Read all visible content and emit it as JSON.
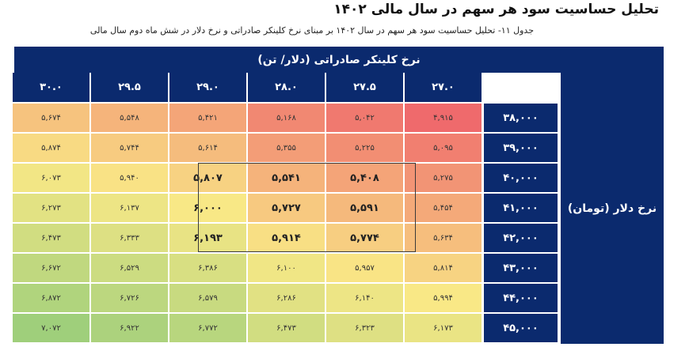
{
  "title": "تحلیل حساسیت سود هر سهم در سال مالی ۱۴۰۲",
  "caption": "جدول ۱۱- تحلیل حساسیت سود هر سهم در سال ۱۴۰۲ بر مبنای نرخ کلینکر صادراتی و نرخ دلار در شش ماه دوم سال مالی",
  "table": {
    "column_group_header": "نرخ کلینکر صادراتی (دلار/ تن)",
    "row_group_header": "نرخ دلار (تومان)",
    "columns": [
      "۲۷.۰",
      "۲۷.۵",
      "۲۸.۰",
      "۲۹.۰",
      "۲۹.۵",
      "۳۰.۰"
    ],
    "rows": [
      "۳۸,۰۰۰",
      "۳۹,۰۰۰",
      "۴۰,۰۰۰",
      "۴۱,۰۰۰",
      "۴۲,۰۰۰",
      "۴۳,۰۰۰",
      "۴۴,۰۰۰",
      "۴۵,۰۰۰"
    ],
    "values": [
      [
        "۴,۹۱۵",
        "۵,۰۴۲",
        "۵,۱۶۸",
        "۵,۴۲۱",
        "۵,۵۴۸",
        "۵,۶۷۴"
      ],
      [
        "۵,۰۹۵",
        "۵,۲۲۵",
        "۵,۳۵۵",
        "۵,۶۱۴",
        "۵,۷۴۴",
        "۵,۸۷۴"
      ],
      [
        "۵,۲۷۵",
        "۵,۴۰۸",
        "۵,۵۴۱",
        "۵,۸۰۷",
        "۵,۹۴۰",
        "۶,۰۷۳"
      ],
      [
        "۵,۴۵۴",
        "۵,۵۹۱",
        "۵,۷۲۷",
        "۶,۰۰۰",
        "۶,۱۳۷",
        "۶,۲۷۳"
      ],
      [
        "۵,۶۳۴",
        "۵,۷۷۴",
        "۵,۹۱۴",
        "۶,۱۹۳",
        "۶,۳۳۳",
        "۶,۴۷۳"
      ],
      [
        "۵,۸۱۴",
        "۵,۹۵۷",
        "۶,۱۰۰",
        "۶,۳۸۶",
        "۶,۵۲۹",
        "۶,۶۷۲"
      ],
      [
        "۵,۹۹۴",
        "۶,۱۴۰",
        "۶,۲۸۶",
        "۶,۵۷۹",
        "۶,۷۲۶",
        "۶,۸۷۲"
      ],
      [
        "۶,۱۷۳",
        "۶,۳۲۳",
        "۶,۴۷۳",
        "۶,۷۷۲",
        "۶,۹۲۲",
        "۷,۰۷۲"
      ]
    ],
    "numeric_values": [
      [
        4915,
        5042,
        5168,
        5421,
        5548,
        5674
      ],
      [
        5095,
        5225,
        5355,
        5614,
        5744,
        5874
      ],
      [
        5275,
        5408,
        5541,
        5807,
        5940,
        6073
      ],
      [
        5454,
        5591,
        5727,
        6000,
        6137,
        6273
      ],
      [
        5634,
        5774,
        5914,
        6193,
        6333,
        6473
      ],
      [
        5814,
        5957,
        6100,
        6386,
        6529,
        6672
      ],
      [
        5994,
        6140,
        6286,
        6579,
        6726,
        6872
      ],
      [
        6173,
        6323,
        6473,
        6772,
        6922,
        7072
      ]
    ],
    "highlighted_rows": [
      2,
      3,
      4
    ],
    "highlighted_cols": [
      1,
      2,
      3
    ],
    "colors": {
      "header_bg": "#0b2a6e",
      "scale_low": "#ef6a6c",
      "scale_mid": "#f9e886",
      "scale_high": "#9fcf7b"
    }
  }
}
